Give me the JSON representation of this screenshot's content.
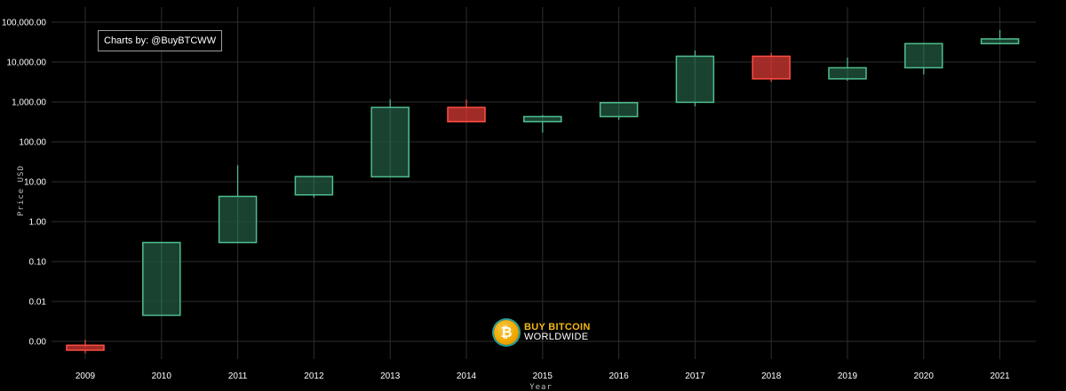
{
  "chart_data": {
    "type": "candlestick",
    "title": "",
    "xlabel": "Year",
    "ylabel": "Price USD",
    "y_scale": "log",
    "ylim": [
      0.0005,
      200000
    ],
    "grid": true,
    "y_ticks": [
      {
        "value": 0.001,
        "label": "0.00"
      },
      {
        "value": 0.01,
        "label": "0.01"
      },
      {
        "value": 0.1,
        "label": "0.10"
      },
      {
        "value": 1,
        "label": "1.00"
      },
      {
        "value": 10,
        "label": "10.00"
      },
      {
        "value": 100,
        "label": "100.00"
      },
      {
        "value": 1000,
        "label": "1,000.00"
      },
      {
        "value": 10000,
        "label": "10,000.00"
      },
      {
        "value": 100000,
        "label": "100,000.00"
      }
    ],
    "categories": [
      "2009",
      "2010",
      "2011",
      "2012",
      "2013",
      "2014",
      "2015",
      "2016",
      "2017",
      "2018",
      "2019",
      "2020",
      "2021"
    ],
    "candles": [
      {
        "year": "2009",
        "open": 0.0008,
        "high": 0.0011,
        "low": 0.0005,
        "close": 0.0006
      },
      {
        "year": "2010",
        "open": 0.0045,
        "high": 0.3,
        "low": 0.0045,
        "close": 0.3
      },
      {
        "year": "2011",
        "open": 0.3,
        "high": 26,
        "low": 0.3,
        "close": 4.3
      },
      {
        "year": "2012",
        "open": 4.7,
        "high": 13.7,
        "low": 4.0,
        "close": 13.5
      },
      {
        "year": "2013",
        "open": 13.3,
        "high": 1150,
        "low": 13.3,
        "close": 730
      },
      {
        "year": "2014",
        "open": 730,
        "high": 1150,
        "low": 320,
        "close": 320
      },
      {
        "year": "2015",
        "open": 320,
        "high": 470,
        "low": 170,
        "close": 430
      },
      {
        "year": "2016",
        "open": 430,
        "high": 980,
        "low": 360,
        "close": 960
      },
      {
        "year": "2017",
        "open": 980,
        "high": 19500,
        "low": 780,
        "close": 14000
      },
      {
        "year": "2018",
        "open": 14000,
        "high": 17000,
        "low": 3200,
        "close": 3800
      },
      {
        "year": "2019",
        "open": 3800,
        "high": 13000,
        "low": 3400,
        "close": 7200
      },
      {
        "year": "2020",
        "open": 7200,
        "high": 29000,
        "low": 4900,
        "close": 29000
      },
      {
        "year": "2021",
        "open": 29000,
        "high": 64000,
        "low": 29000,
        "close": 38000
      }
    ],
    "colors": {
      "up_fill": "#1f4d3a",
      "up_stroke": "#4fbf8f",
      "down_fill": "#b3302b",
      "down_stroke": "#ff4d43",
      "grid": "#2e2e2e",
      "background": "#000000"
    }
  },
  "watermark": {
    "credit": "Charts by: @BuyBTCWW",
    "brand_line1": "BUY BITCOIN",
    "brand_line2": "WORLDWIDE",
    "brand_icon": "bitcoin-logo-icon",
    "brand_icon_glyph": "₿"
  }
}
